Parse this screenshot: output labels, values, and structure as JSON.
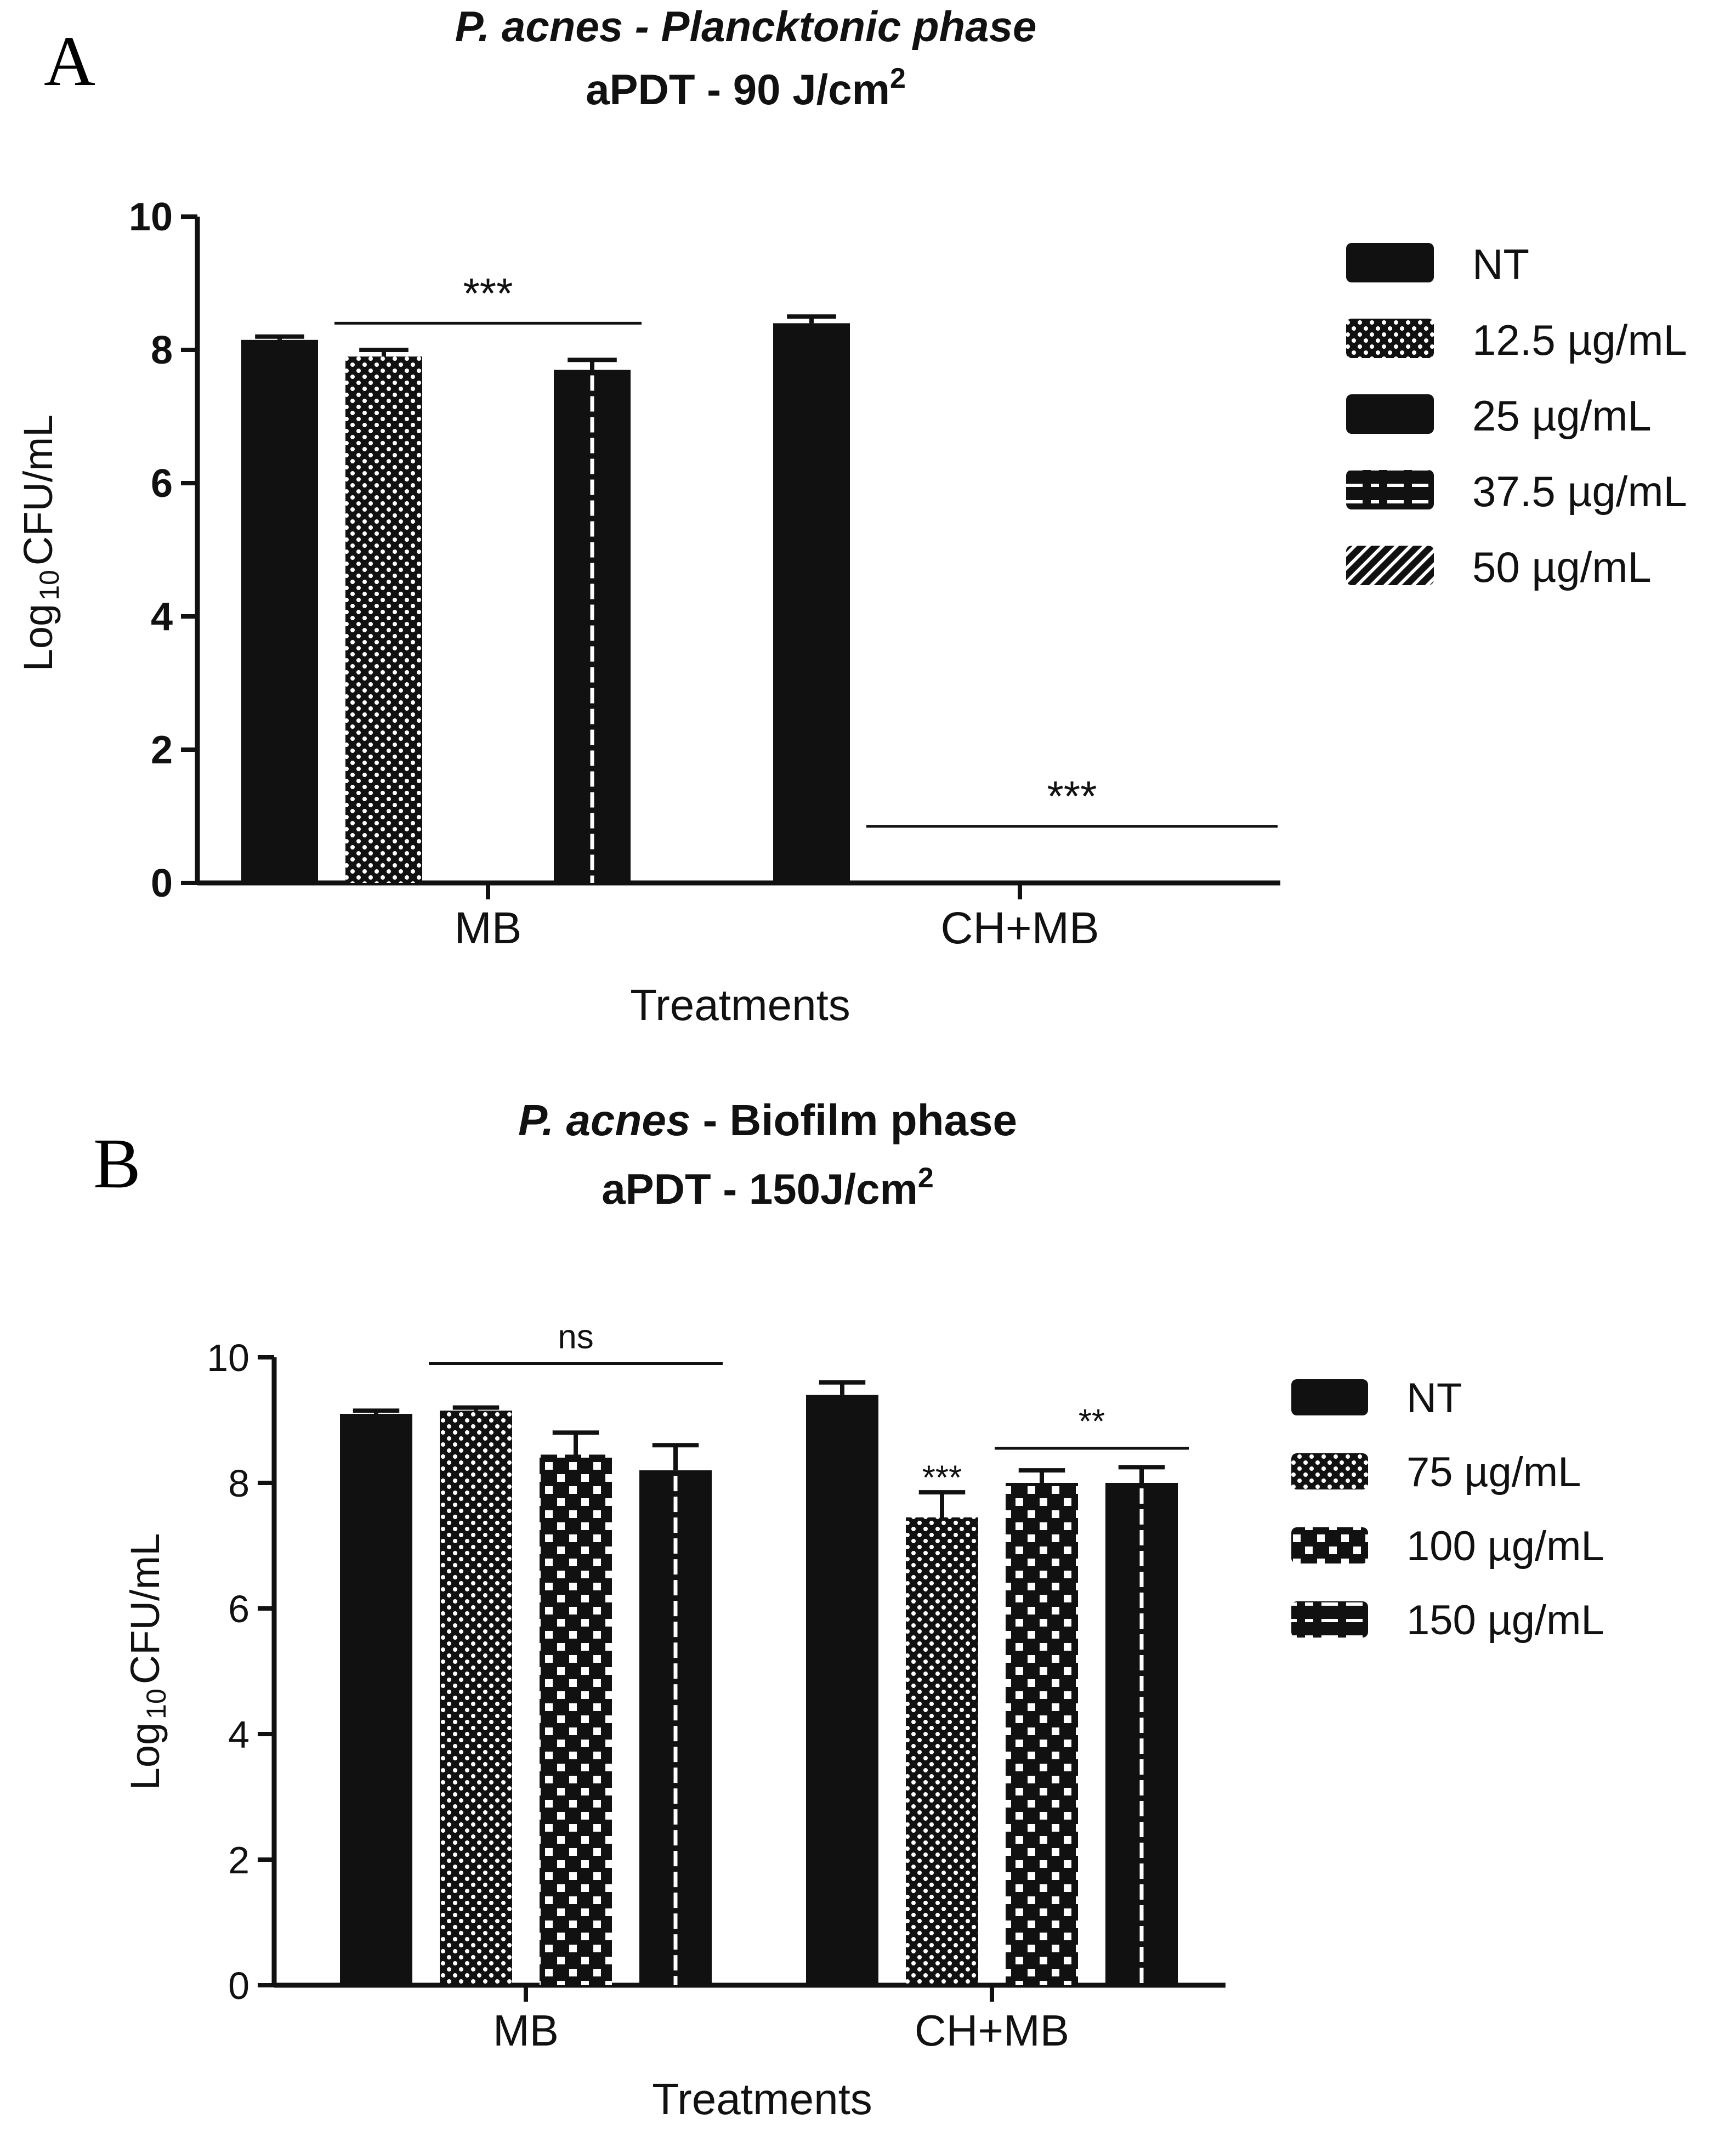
{
  "chart_data": [
    {
      "panel_label": "A",
      "type": "bar",
      "title_line1_italic": "P. acnes - Plancktonic phase",
      "title_line2_base": "aPDT - 90 J/cm",
      "title_line2_sup": "2",
      "ylabel_pre": "Log",
      "ylabel_sub": "10",
      "ylabel_post": "CFU/mL",
      "xlabel": "Treatments",
      "ylim": [
        0,
        10
      ],
      "yticks": [
        "0",
        "2",
        "4",
        "6",
        "8",
        "10"
      ],
      "categories": [
        "MB",
        "CH+MB"
      ],
      "series": [
        {
          "name": "NT",
          "values": [
            8.15,
            8.4
          ],
          "errors": [
            0.05,
            0.1
          ],
          "pattern": "solid"
        },
        {
          "name": "12.5 µg/mL",
          "values": [
            7.9,
            0
          ],
          "errors": [
            0.1,
            0
          ],
          "pattern": "dots"
        },
        {
          "name": "25 µg/mL",
          "values": [
            null,
            0
          ],
          "errors": [
            0,
            0
          ],
          "pattern": "solid"
        },
        {
          "name": "37.5 µg/mL",
          "values": [
            7.7,
            0
          ],
          "errors": [
            0.15,
            0
          ],
          "pattern": "dashline"
        },
        {
          "name": "50 µg/mL",
          "values": [
            null,
            0
          ],
          "errors": [
            0,
            0
          ],
          "pattern": "hatch"
        }
      ],
      "annotations": [
        {
          "text": "***",
          "category": 0,
          "from_series": 1,
          "to_series": 3,
          "y": 8.4
        },
        {
          "text": "***",
          "category": 1,
          "from_series": 1,
          "to_series": 4,
          "y": 0.85
        }
      ]
    },
    {
      "panel_label": "B",
      "type": "bar",
      "title_line1_italic": "P. acnes",
      "title_line1_rest": " - Biofilm phase",
      "title_line2_base": "aPDT - 150J/cm",
      "title_line2_sup": "2",
      "ylabel_pre": "Log",
      "ylabel_sub": "10",
      "ylabel_post": "CFU/mL",
      "xlabel": "Treatments",
      "ylim": [
        0,
        10
      ],
      "yticks": [
        "0",
        "2",
        "4",
        "6",
        "8",
        "10"
      ],
      "categories": [
        "MB",
        "CH+MB"
      ],
      "series": [
        {
          "name": "NT",
          "values": [
            9.1,
            9.4
          ],
          "errors": [
            0.05,
            0.2
          ],
          "pattern": "solid"
        },
        {
          "name": "75 µg/mL",
          "values": [
            9.15,
            7.45
          ],
          "errors": [
            0.05,
            0.4
          ],
          "pattern": "dots"
        },
        {
          "name": "100 µg/mL",
          "values": [
            8.45,
            8.0
          ],
          "errors": [
            0.35,
            0.2
          ],
          "pattern": "checker"
        },
        {
          "name": "150 µg/mL",
          "values": [
            8.2,
            8.0
          ],
          "errors": [
            0.4,
            0.25
          ],
          "pattern": "dashline"
        }
      ],
      "annotations": [
        {
          "text": "ns",
          "category": 0,
          "from_series": 1,
          "to_series": 3,
          "y": 9.9
        },
        {
          "text": "***",
          "category": 1,
          "from_series": 1,
          "to_series": 1,
          "y": 7.9,
          "above_only": true
        },
        {
          "text": "**",
          "category": 1,
          "from_series": 2,
          "to_series": 3,
          "y": 8.55
        }
      ]
    }
  ]
}
